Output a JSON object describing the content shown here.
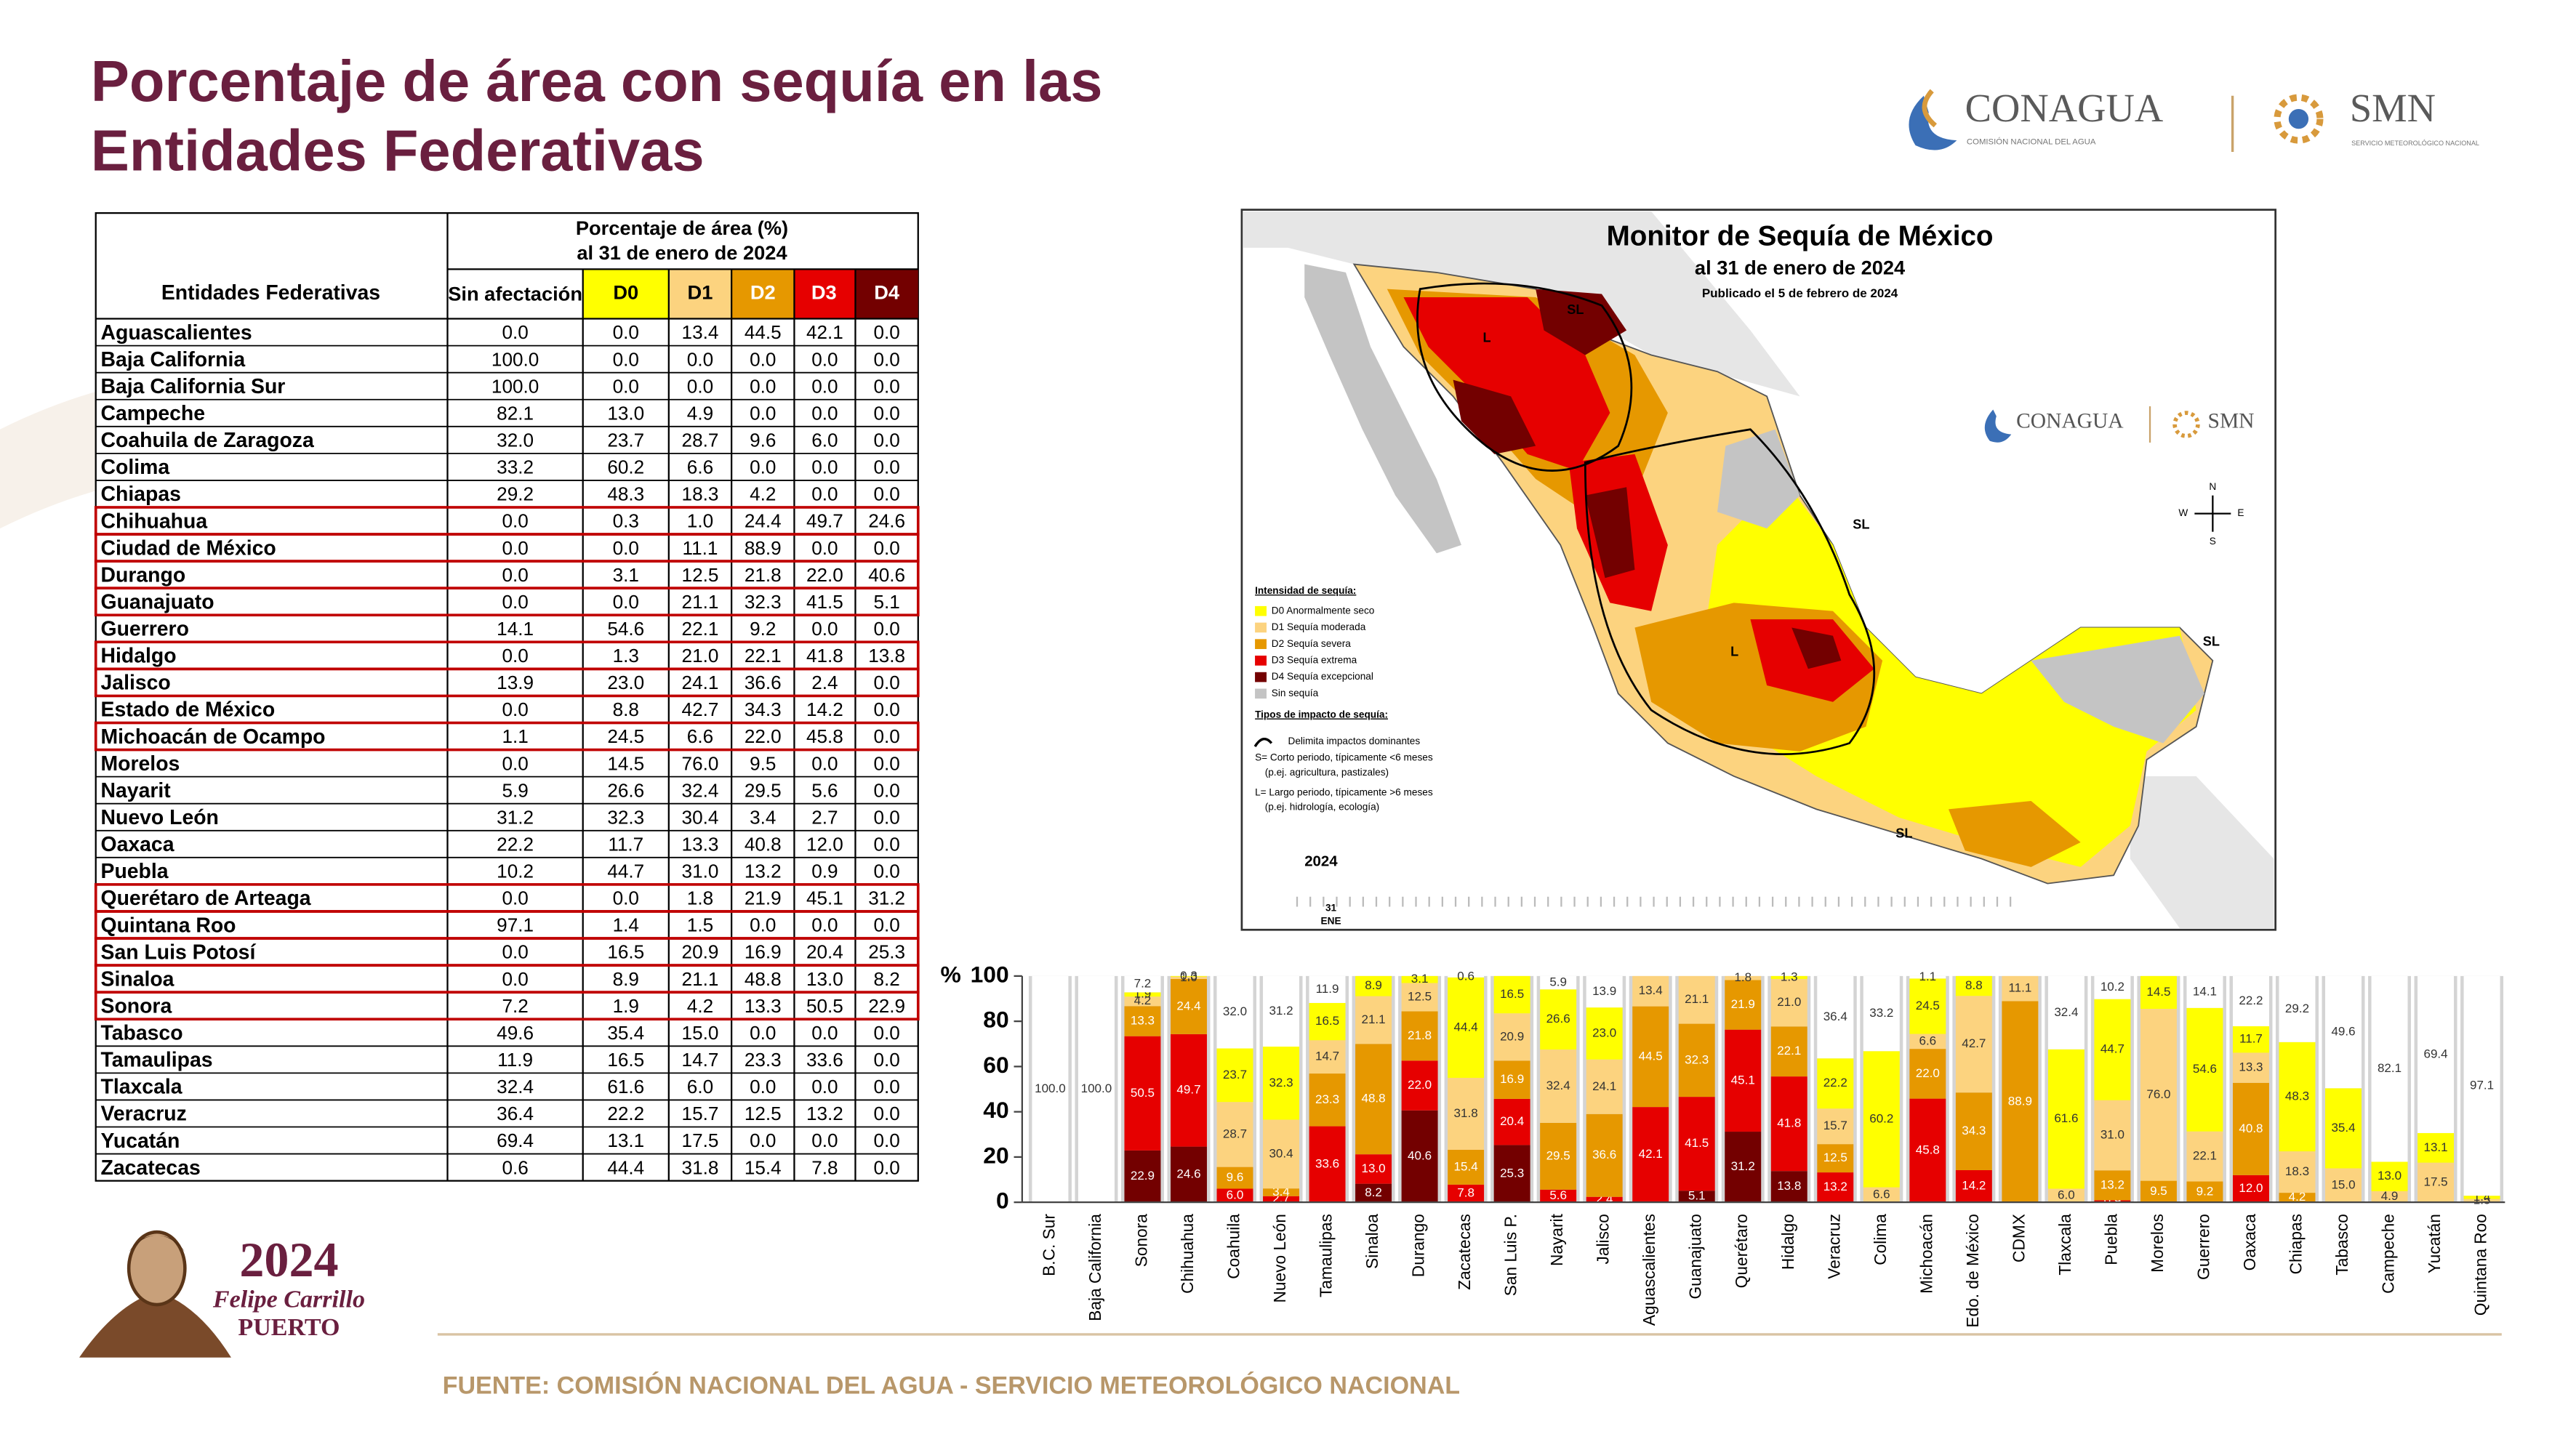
{
  "title": [
    "Porcentaje de área con sequía en las",
    "Entidades Federativas"
  ],
  "logos": {
    "conagua": "CONAGUA",
    "conagua_sub": "COMISIÓN NACIONAL DEL AGUA",
    "smn": "SMN",
    "smn_sub": "SERVICIO METEOROLÓGICO NACIONAL"
  },
  "table": {
    "group_header": [
      "Porcentaje de área (%)",
      "al 31 de enero de 2024"
    ],
    "columns": [
      "Entidades Federativas",
      "Sin afectación",
      "D0",
      "D1",
      "D2",
      "D3",
      "D4"
    ],
    "rows": [
      [
        "Aguascalientes",
        "0.0",
        "0.0",
        "13.4",
        "44.5",
        "42.1",
        "0.0"
      ],
      [
        "Baja California",
        "100.0",
        "0.0",
        "0.0",
        "0.0",
        "0.0",
        "0.0"
      ],
      [
        "Baja California Sur",
        "100.0",
        "0.0",
        "0.0",
        "0.0",
        "0.0",
        "0.0"
      ],
      [
        "Campeche",
        "82.1",
        "13.0",
        "4.9",
        "0.0",
        "0.0",
        "0.0"
      ],
      [
        "Coahuila de Zaragoza",
        "32.0",
        "23.7",
        "28.7",
        "9.6",
        "6.0",
        "0.0"
      ],
      [
        "Colima",
        "33.2",
        "60.2",
        "6.6",
        "0.0",
        "0.0",
        "0.0"
      ],
      [
        "Chiapas",
        "29.2",
        "48.3",
        "18.3",
        "4.2",
        "0.0",
        "0.0"
      ],
      [
        "Chihuahua",
        "0.0",
        "0.3",
        "1.0",
        "24.4",
        "49.7",
        "24.6"
      ],
      [
        "Ciudad de México",
        "0.0",
        "0.0",
        "11.1",
        "88.9",
        "0.0",
        "0.0"
      ],
      [
        "Durango",
        "0.0",
        "3.1",
        "12.5",
        "21.8",
        "22.0",
        "40.6"
      ],
      [
        "Guanajuato",
        "0.0",
        "0.0",
        "21.1",
        "32.3",
        "41.5",
        "5.1"
      ],
      [
        "Guerrero",
        "14.1",
        "54.6",
        "22.1",
        "9.2",
        "0.0",
        "0.0"
      ],
      [
        "Hidalgo",
        "0.0",
        "1.3",
        "21.0",
        "22.1",
        "41.8",
        "13.8"
      ],
      [
        "Jalisco",
        "13.9",
        "23.0",
        "24.1",
        "36.6",
        "2.4",
        "0.0"
      ],
      [
        "Estado de México",
        "0.0",
        "8.8",
        "42.7",
        "34.3",
        "14.2",
        "0.0"
      ],
      [
        "Michoacán de Ocampo",
        "1.1",
        "24.5",
        "6.6",
        "22.0",
        "45.8",
        "0.0"
      ],
      [
        "Morelos",
        "0.0",
        "14.5",
        "76.0",
        "9.5",
        "0.0",
        "0.0"
      ],
      [
        "Nayarit",
        "5.9",
        "26.6",
        "32.4",
        "29.5",
        "5.6",
        "0.0"
      ],
      [
        "Nuevo León",
        "31.2",
        "32.3",
        "30.4",
        "3.4",
        "2.7",
        "0.0"
      ],
      [
        "Oaxaca",
        "22.2",
        "11.7",
        "13.3",
        "40.8",
        "12.0",
        "0.0"
      ],
      [
        "Puebla",
        "10.2",
        "44.7",
        "31.0",
        "13.2",
        "0.9",
        "0.0"
      ],
      [
        "Querétaro de Arteaga",
        "0.0",
        "0.0",
        "1.8",
        "21.9",
        "45.1",
        "31.2"
      ],
      [
        "Quintana Roo",
        "97.1",
        "1.4",
        "1.5",
        "0.0",
        "0.0",
        "0.0"
      ],
      [
        "San Luis Potosí",
        "0.0",
        "16.5",
        "20.9",
        "16.9",
        "20.4",
        "25.3"
      ],
      [
        "Sinaloa",
        "0.0",
        "8.9",
        "21.1",
        "48.8",
        "13.0",
        "8.2"
      ],
      [
        "Sonora",
        "7.2",
        "1.9",
        "4.2",
        "13.3",
        "50.5",
        "22.9"
      ],
      [
        "Tabasco",
        "49.6",
        "35.4",
        "15.0",
        "0.0",
        "0.0",
        "0.0"
      ],
      [
        "Tamaulipas",
        "11.9",
        "16.5",
        "14.7",
        "23.3",
        "33.6",
        "0.0"
      ],
      [
        "Tlaxcala",
        "32.4",
        "61.6",
        "6.0",
        "0.0",
        "0.0",
        "0.0"
      ],
      [
        "Veracruz",
        "36.4",
        "22.2",
        "15.7",
        "12.5",
        "13.2",
        "0.0"
      ],
      [
        "Yucatán",
        "69.4",
        "13.1",
        "17.5",
        "0.0",
        "0.0",
        "0.0"
      ],
      [
        "Zacatecas",
        "0.6",
        "44.4",
        "31.8",
        "15.4",
        "7.8",
        "0.0"
      ]
    ],
    "highlight": [
      false,
      false,
      false,
      false,
      false,
      false,
      false,
      true,
      true,
      true,
      true,
      false,
      true,
      true,
      false,
      true,
      false,
      false,
      false,
      false,
      false,
      true,
      true,
      true,
      true,
      true,
      false,
      false,
      false,
      false,
      false,
      false
    ]
  },
  "map": {
    "title": "Monitor de Sequía de México",
    "subtitle": "al 31 de enero de 2024",
    "published": "Publicado el 5 de febrero de 2024",
    "logo_conagua": "CONAGUA",
    "logo_smn": "SMN",
    "legend_title": "Intensidad de sequía:",
    "legend_items": [
      "D0 Anormalmente seco",
      "D1 Sequía moderada",
      "D2 Sequía severa",
      "D3 Sequía extrema",
      "D4 Sequía excepcional",
      "Sin sequía"
    ],
    "impact_title": "Tipos de impacto de sequía:",
    "impact_items": [
      "Delimita impactos dominantes",
      "S= Corto periodo, típicamente <6 meses",
      "(p.ej. agricultura, pastizales)",
      "L= Largo periodo, típicamente >6 meses",
      "(p.ej. hidrología, ecología)"
    ],
    "region_labels": [
      "SL",
      "L",
      "SL",
      "L",
      "SL",
      "SL"
    ],
    "compass": [
      "N",
      "E",
      "S",
      "W"
    ],
    "timeline_year": "2024",
    "timeline_day": "31",
    "timeline_month": "ENE"
  },
  "chart_data": {
    "type": "bar",
    "stacked": true,
    "y_label": "%",
    "categories": [
      "B.C. Sur",
      "Baja California",
      "Sonora",
      "Chihuahua",
      "Coahuila",
      "Nuevo León",
      "Tamaulipas",
      "Sinaloa",
      "Durango",
      "Zacatecas",
      "San Luis P.",
      "Nayarit",
      "Jalisco",
      "Aguascalientes",
      "Guanajuato",
      "Querétaro",
      "Hidalgo",
      "Veracruz",
      "Colima",
      "Michoacán",
      "Edo. de México",
      "CDMX",
      "Tlaxcala",
      "Puebla",
      "Morelos",
      "Guerrero",
      "Oaxaca",
      "Chiapas",
      "Tabasco",
      "Campeche",
      "Yucatán",
      "Quintana Roo"
    ],
    "ylim": [
      0,
      100
    ],
    "yticks": [
      0,
      20,
      40,
      60,
      80,
      100
    ],
    "series": [
      {
        "color": "#730000",
        "label_color": "#ffffff",
        "values": [
          0,
          0,
          22.9,
          24.6,
          0,
          0,
          0,
          8.2,
          40.6,
          0,
          25.3,
          0,
          0,
          0,
          5.1,
          31.2,
          13.8,
          0,
          0,
          0,
          0,
          0,
          0,
          0,
          0,
          0,
          0,
          0,
          0,
          0,
          0,
          0
        ],
        "value_labels": [
          null,
          null,
          "22.9",
          "24.6",
          null,
          null,
          null,
          "8.2",
          "40.6",
          null,
          "25.3",
          null,
          null,
          null,
          "5.1",
          "31.2",
          "13.8",
          null,
          null,
          null,
          null,
          null,
          null,
          null,
          null,
          null,
          null,
          null,
          null,
          null,
          null,
          null
        ]
      },
      {
        "color": "#e60000",
        "label_color": "#ffffff",
        "values": [
          0,
          0,
          50.5,
          49.7,
          6.0,
          2.7,
          33.6,
          13.0,
          22.0,
          7.8,
          20.4,
          5.6,
          2.4,
          42.1,
          41.5,
          45.1,
          41.8,
          13.2,
          0,
          45.8,
          14.2,
          0,
          0,
          0.9,
          0,
          0,
          12.0,
          0,
          0,
          0,
          0,
          0
        ],
        "value_labels": [
          null,
          null,
          "50.5",
          "49.7",
          "6.0",
          "2.7",
          "33.6",
          "13.0",
          "22.0",
          "7.8",
          "20.4",
          "5.6",
          "2.4",
          "42.1",
          "41.5",
          "45.1",
          "41.8",
          "13.2",
          null,
          "45.8",
          "14.2",
          null,
          null,
          "0.9",
          null,
          null,
          "12.0",
          null,
          null,
          null,
          null,
          null
        ]
      },
      {
        "color": "#e69800",
        "label_color": "#ffffff",
        "values": [
          0,
          0,
          13.3,
          24.4,
          9.6,
          3.4,
          23.3,
          48.8,
          21.8,
          15.4,
          16.9,
          29.5,
          36.6,
          44.5,
          32.3,
          21.9,
          22.1,
          12.5,
          0,
          22.0,
          34.3,
          88.9,
          0,
          13.2,
          9.5,
          9.2,
          40.8,
          4.2,
          0,
          0,
          0,
          0
        ],
        "value_labels": [
          null,
          null,
          "13.3",
          "24.4",
          "9.6",
          "3.4",
          "23.3",
          "48.8",
          "21.8",
          "15.4",
          "16.9",
          "29.5",
          "36.6",
          "44.5",
          "32.3",
          "21.9",
          "22.1",
          "12.5",
          null,
          "22.0",
          "34.3",
          "88.9",
          null,
          "13.2",
          "9.5",
          "9.2",
          "40.8",
          "4.2",
          null,
          null,
          null,
          null
        ]
      },
      {
        "color": "#fcd37f",
        "label_color": "#333333",
        "values": [
          0,
          0,
          4.2,
          1.0,
          28.7,
          30.4,
          14.7,
          21.1,
          12.5,
          31.8,
          20.9,
          32.4,
          24.1,
          13.4,
          21.1,
          1.8,
          21.0,
          15.7,
          6.6,
          6.6,
          42.7,
          11.1,
          6.0,
          31.0,
          76.0,
          22.1,
          13.3,
          18.3,
          15.0,
          4.9,
          17.5,
          1.5
        ],
        "value_labels": [
          null,
          null,
          "4.2",
          "1.0",
          "28.7",
          "30.4",
          "14.7",
          "21.1",
          "12.5",
          "31.8",
          "20.9",
          "32.4",
          "24.1",
          "13.4",
          "21.1",
          "1.8",
          "21.0",
          "15.7",
          "6.6",
          "6.6",
          "42.7",
          "11.1",
          "6.0",
          "31.0",
          "76.0",
          "22.1",
          "13.3",
          "18.3",
          "15.0",
          "4.9",
          "17.5",
          "1.5"
        ]
      },
      {
        "color": "#ffff00",
        "label_color": "#333333",
        "values": [
          0,
          0,
          1.9,
          0.3,
          23.7,
          32.3,
          16.5,
          8.9,
          3.1,
          44.4,
          16.5,
          26.6,
          23.0,
          0,
          0,
          0,
          1.3,
          22.2,
          60.2,
          24.5,
          8.8,
          0,
          61.6,
          44.7,
          14.5,
          54.6,
          11.7,
          48.3,
          35.4,
          13.0,
          13.1,
          1.4
        ],
        "value_labels": [
          null,
          null,
          "1.9",
          "0.3",
          "23.7",
          "32.3",
          "16.5",
          "8.9",
          "3.1",
          "44.4",
          "16.5",
          "26.6",
          "23.0",
          null,
          null,
          null,
          "1.3",
          "22.2",
          "60.2",
          "24.5",
          "8.8",
          null,
          "61.6",
          "44.7",
          "14.5",
          "54.6",
          "11.7",
          "48.3",
          "35.4",
          "13.0",
          "13.1",
          "1.4"
        ]
      },
      {
        "color": "#ffffff",
        "label_color": "#333333",
        "values": [
          100,
          100,
          7.2,
          0,
          32.0,
          31.2,
          11.9,
          0,
          0,
          0.6,
          0,
          5.9,
          13.9,
          0,
          0,
          0,
          0,
          36.4,
          33.2,
          1.1,
          0,
          0,
          32.4,
          10.2,
          0,
          14.1,
          22.2,
          29.2,
          49.6,
          82.1,
          69.4,
          97.1
        ],
        "value_labels": [
          "100.0",
          "100.0",
          "7.2",
          null,
          "32.0",
          "31.2",
          "11.9",
          null,
          null,
          "0.6",
          null,
          "5.9",
          "13.9",
          null,
          null,
          null,
          null,
          "36.4",
          "33.2",
          "1.1",
          null,
          null,
          "32.4",
          "10.2",
          null,
          "14.1",
          "22.2",
          "29.2",
          "49.6",
          "82.1",
          "69.4",
          "97.1"
        ]
      }
    ]
  },
  "emblem": {
    "year": "2024",
    "name": "Felipe Carrillo",
    "surname": "PUERTO"
  },
  "footer": "FUENTE: COMISIÓN NACIONAL DEL AGUA - SERVICIO METEOROLÓGICO NACIONAL"
}
